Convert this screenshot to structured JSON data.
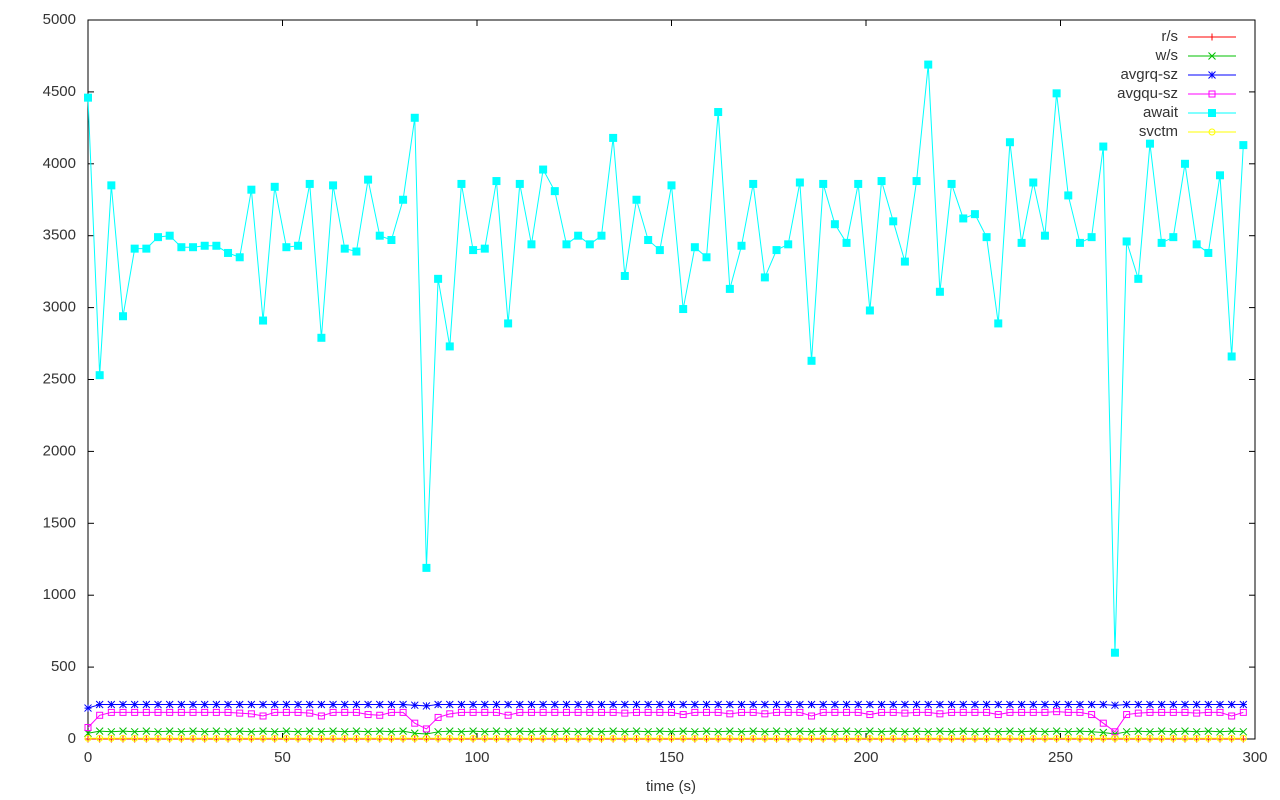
{
  "chart_data": {
    "type": "line",
    "x_label": "time (s)",
    "x": [
      0,
      3,
      6,
      9,
      12,
      15,
      18,
      21,
      24,
      27,
      30,
      33,
      36,
      39,
      42,
      45,
      48,
      51,
      54,
      57,
      60,
      63,
      66,
      69,
      72,
      75,
      78,
      81,
      84,
      87,
      90,
      93,
      96,
      99,
      102,
      105,
      108,
      111,
      114,
      117,
      120,
      123,
      126,
      129,
      132,
      135,
      138,
      141,
      144,
      147,
      150,
      153,
      156,
      159,
      162,
      165,
      168,
      171,
      174,
      177,
      180,
      183,
      186,
      189,
      192,
      195,
      198,
      201,
      204,
      207,
      210,
      213,
      216,
      219,
      222,
      225,
      228,
      231,
      234,
      237,
      240,
      243,
      246,
      249,
      252,
      255,
      258,
      261,
      264,
      267,
      270,
      273,
      276,
      279,
      282,
      285,
      288,
      291,
      294,
      297
    ],
    "xlim": [
      0,
      300
    ],
    "xticks": [
      0,
      50,
      100,
      150,
      200,
      250,
      300
    ],
    "ylim": [
      0,
      5000
    ],
    "yticks": [
      0,
      500,
      1000,
      1500,
      2000,
      2500,
      3000,
      3500,
      4000,
      4500,
      5000
    ],
    "grid": false,
    "legend": "top-right",
    "series": [
      {
        "name": "r/s",
        "color": "#ff0000",
        "marker": "plus",
        "values": [
          0,
          0,
          0,
          0,
          0,
          0,
          0,
          0,
          0,
          0,
          0,
          0,
          0,
          0,
          0,
          0,
          0,
          0,
          0,
          0,
          0,
          0,
          0,
          0,
          0,
          0,
          0,
          0,
          0,
          0,
          0,
          0,
          0,
          0,
          0,
          0,
          0,
          0,
          0,
          0,
          0,
          0,
          0,
          0,
          0,
          0,
          0,
          0,
          0,
          0,
          0,
          0,
          0,
          0,
          0,
          0,
          0,
          0,
          0,
          0,
          0,
          0,
          0,
          0,
          0,
          0,
          0,
          0,
          0,
          0,
          0,
          0,
          0,
          0,
          0,
          0,
          0,
          0,
          0,
          0,
          0,
          0,
          0,
          0,
          0,
          0,
          0,
          0,
          0,
          0,
          0,
          0,
          0,
          0,
          0,
          0,
          0,
          0,
          0,
          0
        ]
      },
      {
        "name": "w/s",
        "color": "#00c000",
        "marker": "cross",
        "values": [
          40,
          55,
          50,
          55,
          50,
          55,
          50,
          55,
          50,
          55,
          50,
          55,
          50,
          55,
          50,
          55,
          50,
          55,
          50,
          55,
          50,
          55,
          50,
          55,
          50,
          55,
          50,
          55,
          40,
          35,
          50,
          55,
          50,
          55,
          50,
          55,
          50,
          55,
          50,
          55,
          50,
          55,
          50,
          55,
          50,
          55,
          50,
          55,
          50,
          55,
          50,
          55,
          50,
          55,
          50,
          55,
          50,
          55,
          50,
          55,
          50,
          55,
          50,
          55,
          50,
          55,
          50,
          55,
          50,
          55,
          50,
          55,
          50,
          55,
          50,
          55,
          50,
          55,
          50,
          55,
          50,
          55,
          50,
          55,
          50,
          55,
          50,
          45,
          35,
          50,
          55,
          50,
          55,
          50,
          55,
          50,
          55,
          50,
          55,
          50
        ]
      },
      {
        "name": "avgrq-sz",
        "color": "#0000ff",
        "marker": "star",
        "values": [
          215,
          240,
          240,
          240,
          240,
          240,
          240,
          240,
          240,
          240,
          240,
          240,
          240,
          240,
          240,
          240,
          240,
          240,
          240,
          240,
          240,
          240,
          240,
          240,
          240,
          240,
          240,
          240,
          235,
          230,
          240,
          240,
          240,
          240,
          240,
          240,
          240,
          240,
          240,
          240,
          240,
          240,
          240,
          240,
          240,
          240,
          240,
          240,
          240,
          240,
          240,
          240,
          240,
          240,
          240,
          240,
          240,
          240,
          240,
          240,
          240,
          240,
          240,
          240,
          240,
          240,
          240,
          240,
          240,
          240,
          240,
          240,
          240,
          240,
          240,
          240,
          240,
          240,
          240,
          240,
          240,
          240,
          240,
          240,
          240,
          240,
          240,
          240,
          235,
          240,
          240,
          240,
          240,
          240,
          240,
          240,
          240,
          240,
          240,
          240
        ]
      },
      {
        "name": "avgqu-sz",
        "color": "#ff00ff",
        "marker": "square",
        "values": [
          80,
          165,
          185,
          185,
          185,
          185,
          185,
          185,
          185,
          185,
          185,
          185,
          185,
          180,
          175,
          160,
          185,
          185,
          185,
          180,
          160,
          185,
          185,
          185,
          170,
          165,
          185,
          185,
          110,
          70,
          150,
          175,
          185,
          185,
          185,
          185,
          165,
          185,
          185,
          185,
          185,
          185,
          185,
          185,
          185,
          185,
          180,
          185,
          185,
          185,
          185,
          170,
          185,
          185,
          185,
          175,
          185,
          185,
          175,
          185,
          185,
          185,
          160,
          185,
          185,
          185,
          185,
          170,
          185,
          185,
          180,
          185,
          185,
          175,
          185,
          185,
          185,
          185,
          170,
          185,
          185,
          185,
          185,
          190,
          185,
          185,
          170,
          110,
          50,
          170,
          180,
          185,
          185,
          185,
          185,
          180,
          185,
          185,
          160,
          185
        ]
      },
      {
        "name": "await",
        "color": "#00ffff",
        "marker": "filled-square",
        "values": [
          4460,
          2530,
          3850,
          2940,
          3410,
          3410,
          3490,
          3500,
          3420,
          3420,
          3430,
          3430,
          3380,
          3350,
          3820,
          2910,
          3840,
          3420,
          3430,
          3860,
          2790,
          3850,
          3410,
          3390,
          3890,
          3500,
          3470,
          3750,
          4320,
          1190,
          3200,
          2730,
          3860,
          3400,
          3410,
          3880,
          2890,
          3860,
          3440,
          3960,
          3810,
          3440,
          3500,
          3440,
          3500,
          4180,
          3220,
          3750,
          3470,
          3400,
          3850,
          2990,
          3420,
          3350,
          4360,
          3130,
          3430,
          3860,
          3210,
          3400,
          3440,
          3870,
          2630,
          3860,
          3580,
          3450,
          3860,
          2980,
          3880,
          3600,
          3320,
          3880,
          4690,
          3110,
          3860,
          3620,
          3650,
          3490,
          2890,
          4150,
          3450,
          3870,
          3500,
          4490,
          3780,
          3450,
          3490,
          4120,
          600,
          3460,
          3200,
          4140,
          3450,
          3490,
          4000,
          3440,
          3380,
          3920,
          2660,
          4130
        ]
      },
      {
        "name": "svctm",
        "color": "#ffff00",
        "marker": "circle",
        "values": [
          5,
          5,
          5,
          5,
          5,
          5,
          5,
          5,
          5,
          5,
          5,
          5,
          5,
          5,
          5,
          5,
          5,
          5,
          5,
          5,
          5,
          5,
          5,
          5,
          5,
          5,
          5,
          5,
          5,
          5,
          5,
          5,
          5,
          5,
          5,
          5,
          5,
          5,
          5,
          5,
          5,
          5,
          5,
          5,
          5,
          5,
          5,
          5,
          5,
          5,
          5,
          5,
          5,
          5,
          5,
          5,
          5,
          5,
          5,
          5,
          5,
          5,
          5,
          5,
          5,
          5,
          5,
          5,
          5,
          5,
          5,
          5,
          5,
          5,
          5,
          5,
          5,
          5,
          5,
          5,
          5,
          5,
          5,
          5,
          5,
          5,
          5,
          5,
          5,
          5,
          5,
          5,
          5,
          5,
          5,
          5,
          5,
          5,
          5,
          5
        ]
      }
    ]
  }
}
